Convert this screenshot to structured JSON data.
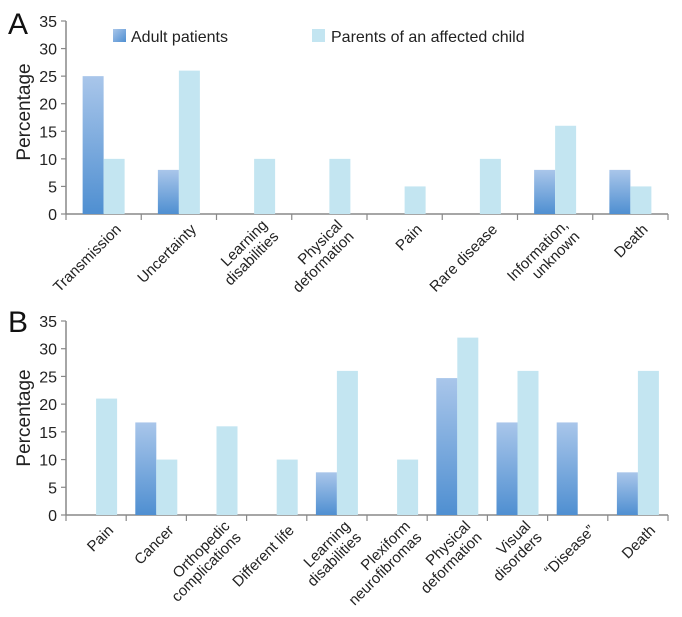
{
  "legend": {
    "series_a": "Adult patients",
    "series_b": "Parents of an affected child"
  },
  "colors": {
    "adult_top": "#a9c6ea",
    "adult_bottom": "#4f8fd1",
    "parent": "#c3e5f1",
    "axis": "#888888"
  },
  "chart_data": [
    {
      "panel": "A",
      "type": "bar",
      "ylabel": "Percentage",
      "ylim": [
        0,
        35
      ],
      "yticks": [
        0,
        5,
        10,
        15,
        20,
        25,
        30,
        35
      ],
      "grid": false,
      "categories": [
        [
          "Transmission"
        ],
        [
          "Uncertainty"
        ],
        [
          "Learning",
          "disabilities"
        ],
        [
          "Physical",
          "deformation"
        ],
        [
          "Pain"
        ],
        [
          "Rare disease"
        ],
        [
          "Information,",
          "unknown"
        ],
        [
          "Death"
        ]
      ],
      "series": [
        {
          "name": "Adult patients",
          "values": [
            25,
            8,
            0,
            0,
            0,
            0,
            8,
            8
          ]
        },
        {
          "name": "Parents of an affected child",
          "values": [
            10,
            26,
            10,
            10,
            5,
            10,
            16,
            5
          ]
        }
      ]
    },
    {
      "panel": "B",
      "type": "bar",
      "ylabel": "Percentage",
      "ylim": [
        0,
        35
      ],
      "yticks": [
        0,
        5,
        10,
        15,
        20,
        25,
        30,
        35
      ],
      "grid": false,
      "categories": [
        [
          "Pain"
        ],
        [
          "Cancer"
        ],
        [
          "Orthopedic",
          "complications"
        ],
        [
          "Different life"
        ],
        [
          "Learning",
          "disabilities"
        ],
        [
          "Plexiform",
          "neurofibromas"
        ],
        [
          "Physical",
          "deformation"
        ],
        [
          "Visual",
          "disorders"
        ],
        [
          "“Disease”"
        ],
        [
          "Death"
        ]
      ],
      "series": [
        {
          "name": "Adult patients",
          "values": [
            0,
            16.7,
            0,
            0,
            7.7,
            0,
            24.7,
            16.7,
            16.7,
            7.7
          ]
        },
        {
          "name": "Parents of an affected child",
          "values": [
            21,
            10,
            16,
            10,
            26,
            10,
            32,
            26,
            0,
            26
          ]
        }
      ]
    }
  ]
}
